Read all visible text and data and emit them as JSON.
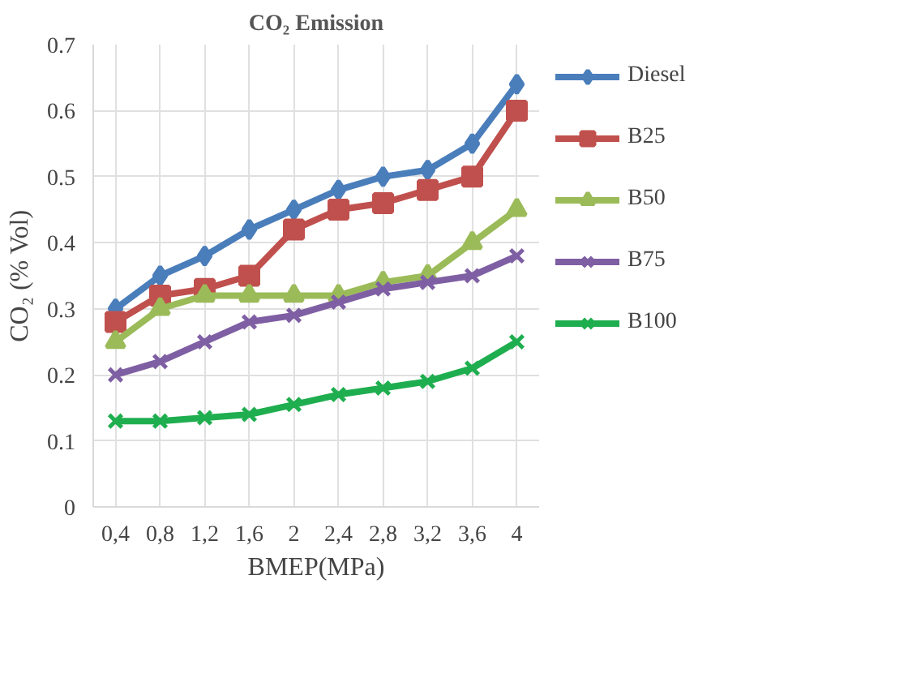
{
  "chart_data": {
    "type": "line",
    "title": "CO₂ Emission",
    "xlabel": "BMEP(MPa)",
    "ylabel": "CO₂ (% Vol)",
    "categories": [
      "0,4",
      "0,8",
      "1,2",
      "1,6",
      "2",
      "2,4",
      "2,8",
      "3,2",
      "3,6",
      "4"
    ],
    "ylim": [
      0,
      0.7
    ],
    "yticks": [
      {
        "value": 0,
        "label": "0"
      },
      0.1,
      0.2,
      0.3,
      0.4,
      0.5,
      0.6,
      0.7
    ],
    "grid": true,
    "legend": "right",
    "line_style": "solid",
    "series": [
      {
        "name": "Diesel",
        "color": "#4a7ebb",
        "marker": "diamond",
        "values": [
          0.3,
          0.35,
          0.38,
          0.42,
          0.45,
          0.48,
          0.5,
          0.51,
          0.55,
          0.64
        ]
      },
      {
        "name": "B25",
        "color": "#c0504d",
        "marker": "square",
        "values": [
          0.28,
          0.32,
          0.33,
          0.35,
          0.42,
          0.45,
          0.46,
          0.48,
          0.5,
          0.6
        ]
      },
      {
        "name": "B50",
        "color": "#9bbb59",
        "marker": "triangle",
        "values": [
          0.25,
          0.3,
          0.32,
          0.32,
          0.32,
          0.32,
          0.34,
          0.35,
          0.4,
          0.45
        ]
      },
      {
        "name": "B75",
        "color": "#7f5fa3",
        "marker": "cross",
        "values": [
          0.2,
          0.22,
          0.25,
          0.28,
          0.29,
          0.31,
          0.33,
          0.34,
          0.35,
          0.38
        ]
      },
      {
        "name": "B100",
        "color": "#1fae4f",
        "marker": "cross",
        "values": [
          0.13,
          0.13,
          0.135,
          0.14,
          0.155,
          0.17,
          0.18,
          0.19,
          0.21,
          0.25
        ]
      }
    ]
  }
}
